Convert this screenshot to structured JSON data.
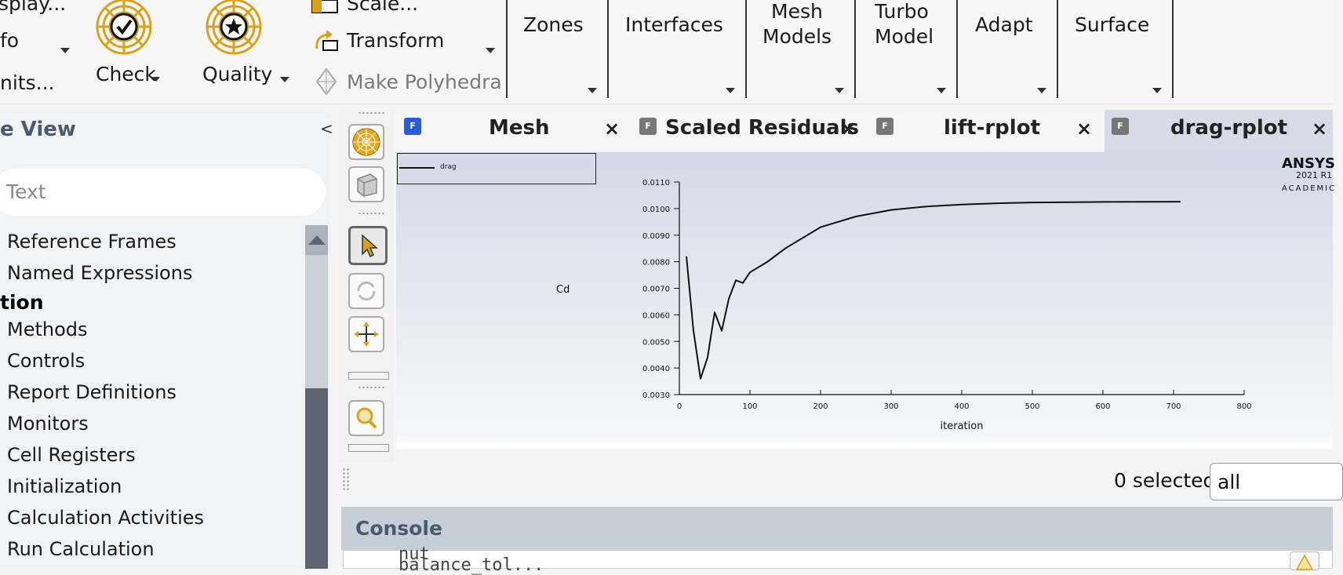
{
  "ribbon": {
    "items": {
      "display": "splay...",
      "info": "fo",
      "units": "nits...",
      "check": "Check",
      "quality": "Quality",
      "scale": "Scale...",
      "transform": "Transform",
      "make_polyhedra": "Make Polyhedra"
    },
    "groups": {
      "zones": "Zones",
      "interfaces": "Interfaces",
      "mesh_models_1": "Mesh",
      "mesh_models_2": "Models",
      "turbo_model_1": "Turbo",
      "turbo_model_2": "Model",
      "adapt": "Adapt",
      "surface": "Surface"
    }
  },
  "tree": {
    "title": "e View",
    "collapse_icon": "<",
    "search_placeholder": "Text",
    "items": [
      {
        "label": "Reference Frames",
        "type": "item"
      },
      {
        "label": "Named Expressions",
        "type": "item"
      },
      {
        "label": "tion",
        "type": "heading"
      },
      {
        "label": "Methods",
        "type": "item"
      },
      {
        "label": "Controls",
        "type": "item"
      },
      {
        "label": "Report Definitions",
        "type": "item"
      },
      {
        "label": "Monitors",
        "type": "item"
      },
      {
        "label": "Cell Registers",
        "type": "item"
      },
      {
        "label": "Initialization",
        "type": "item"
      },
      {
        "label": "Calculation Activities",
        "type": "item"
      },
      {
        "label": "Run Calculation",
        "type": "item"
      }
    ]
  },
  "tabs": [
    {
      "label": "Mesh",
      "icon": "F",
      "active": false
    },
    {
      "label": "Scaled Residuals",
      "icon": "F",
      "active": false
    },
    {
      "label": "lift-rplot",
      "icon": "F",
      "active": false
    },
    {
      "label": "drag-rplot",
      "icon": "F",
      "active": true
    }
  ],
  "tab_close_glyph": "×",
  "logo": {
    "name": "ANSYS",
    "version": "2021 R1",
    "edition": "ACADEMIC"
  },
  "chart_data": {
    "type": "line",
    "title": "",
    "xlabel": "iteration",
    "ylabel": "Cd",
    "xlim": [
      0,
      800
    ],
    "ylim": [
      0.003,
      0.011
    ],
    "x_ticks": [
      "0",
      "100",
      "200",
      "300",
      "400",
      "500",
      "600",
      "700",
      "800"
    ],
    "y_ticks": [
      "0.0030",
      "0.0040",
      "0.0050",
      "0.0060",
      "0.0070",
      "0.0080",
      "0.0090",
      "0.0100",
      "0.0110"
    ],
    "legend": "top-left",
    "grid": false,
    "series": [
      {
        "name": "drag",
        "color": "#111111",
        "x": [
          10,
          20,
          30,
          40,
          50,
          60,
          70,
          80,
          90,
          100,
          125,
          150,
          175,
          200,
          250,
          300,
          350,
          400,
          450,
          500,
          600,
          710
        ],
        "y": [
          0.0082,
          0.0054,
          0.0036,
          0.0044,
          0.0061,
          0.0054,
          0.0066,
          0.0073,
          0.0072,
          0.0076,
          0.008,
          0.0085,
          0.0089,
          0.0093,
          0.0097,
          0.00995,
          0.01008,
          0.01015,
          0.0102,
          0.01023,
          0.01025,
          0.01026
        ]
      }
    ]
  },
  "selection": {
    "count_label": "0 selected",
    "filter_value": "all"
  },
  "console": {
    "title": "Console",
    "text": "nut\nbalance_tol..."
  }
}
